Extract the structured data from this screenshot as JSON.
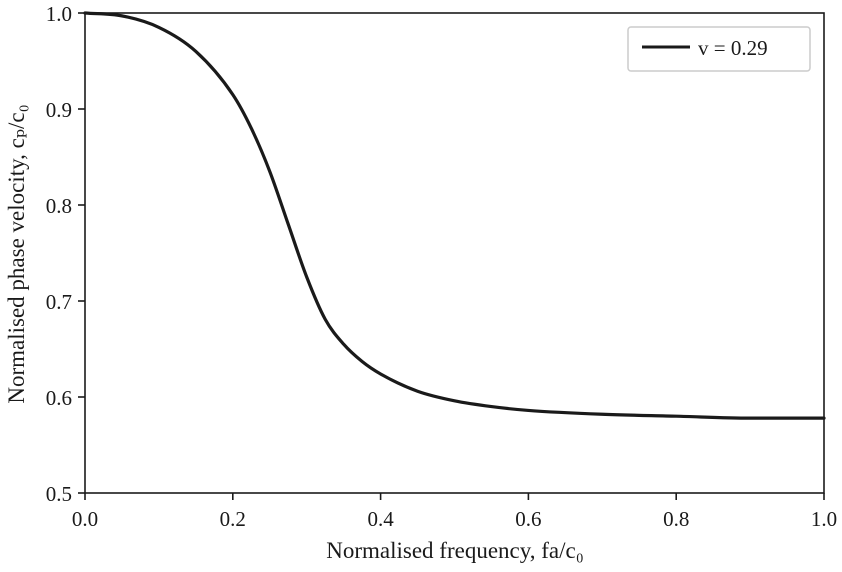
{
  "chart_data": {
    "type": "line",
    "xlabel": "Normalised frequency, fa/c₀",
    "ylabel": "Normalised phase velocity, cₚ/c₀",
    "xlim": [
      0.0,
      1.0
    ],
    "ylim": [
      0.5,
      1.0
    ],
    "x_ticks": [
      "0.0",
      "0.2",
      "0.4",
      "0.6",
      "0.8",
      "1.0"
    ],
    "y_ticks": [
      "0.5",
      "0.6",
      "0.7",
      "0.8",
      "0.9",
      "1.0"
    ],
    "grid": false,
    "legend_position": "top-right",
    "series": [
      {
        "name": "v = 0.29",
        "color": "#1a1a1a",
        "x": [
          0.0,
          0.05,
          0.1,
          0.15,
          0.2,
          0.225,
          0.25,
          0.275,
          0.3,
          0.325,
          0.35,
          0.375,
          0.4,
          0.45,
          0.5,
          0.55,
          0.6,
          0.7,
          0.8,
          0.9,
          1.0
        ],
        "y": [
          1.0,
          0.997,
          0.985,
          0.96,
          0.915,
          0.88,
          0.835,
          0.78,
          0.725,
          0.681,
          0.655,
          0.637,
          0.624,
          0.606,
          0.596,
          0.59,
          0.586,
          0.582,
          0.58,
          0.578,
          0.578
        ]
      }
    ]
  }
}
